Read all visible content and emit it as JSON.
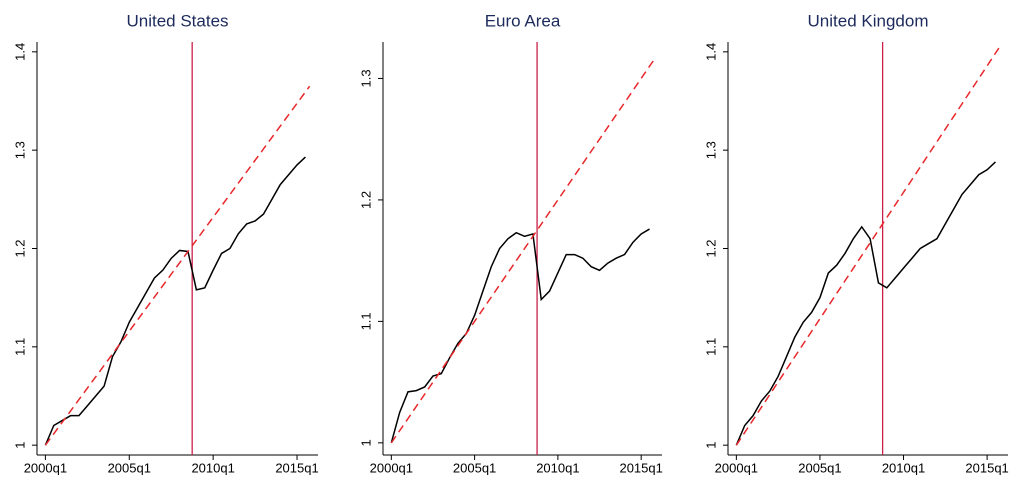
{
  "chart_data": [
    {
      "type": "line",
      "title": "United States",
      "x": [
        2000,
        2000.5,
        2001,
        2001.5,
        2002,
        2002.5,
        2003,
        2003.5,
        2004,
        2004.5,
        2005,
        2005.5,
        2006,
        2006.5,
        2007,
        2007.5,
        2008,
        2008.5,
        2009,
        2009.5,
        2010,
        2010.5,
        2011,
        2011.5,
        2012,
        2012.5,
        2013,
        2013.5,
        2014,
        2014.5,
        2015,
        2015.5
      ],
      "series": [
        {
          "color": "#000000",
          "values": [
            1.0,
            1.02,
            1.025,
            1.03,
            1.03,
            1.04,
            1.05,
            1.06,
            1.09,
            1.105,
            1.125,
            1.14,
            1.155,
            1.17,
            1.178,
            1.19,
            1.198,
            1.197,
            1.158,
            1.16,
            1.178,
            1.195,
            1.2,
            1.215,
            1.225,
            1.228,
            1.235,
            1.25,
            1.265,
            1.275,
            1.285,
            1.293
          ]
        },
        {
          "color": "#e8282b",
          "dash": true,
          "x": [
            2000,
            2015.75
          ],
          "values": [
            1.0,
            1.365
          ]
        }
      ],
      "vline": 2008.75,
      "vline_color": "#c8204a",
      "xlim": [
        1999.5,
        2016.25
      ],
      "xticks": [
        {
          "value": 2000,
          "label": "2000q1"
        },
        {
          "value": 2005,
          "label": "2005q1"
        },
        {
          "value": 2010,
          "label": "2010q1"
        },
        {
          "value": 2015,
          "label": "2015q1"
        }
      ],
      "ylim": [
        0.99,
        1.41
      ],
      "yticks": [
        1,
        1.1,
        1.2,
        1.3,
        1.4
      ]
    },
    {
      "type": "line",
      "title": "Euro Area",
      "x": [
        2000,
        2000.5,
        2001,
        2001.5,
        2002,
        2002.5,
        2003,
        2003.5,
        2004,
        2004.5,
        2005,
        2005.5,
        2006,
        2006.5,
        2007,
        2007.5,
        2008,
        2008.5,
        2009,
        2009.5,
        2010,
        2010.5,
        2011,
        2011.5,
        2012,
        2012.5,
        2013,
        2013.5,
        2014,
        2014.5,
        2015,
        2015.5
      ],
      "series": [
        {
          "color": "#000000",
          "values": [
            1.0,
            1.025,
            1.042,
            1.043,
            1.046,
            1.055,
            1.057,
            1.07,
            1.082,
            1.09,
            1.105,
            1.125,
            1.145,
            1.16,
            1.168,
            1.173,
            1.17,
            1.172,
            1.118,
            1.125,
            1.14,
            1.155,
            1.155,
            1.152,
            1.145,
            1.142,
            1.148,
            1.152,
            1.155,
            1.165,
            1.172,
            1.176
          ]
        },
        {
          "color": "#e8282b",
          "dash": true,
          "x": [
            2000,
            2015.75
          ],
          "values": [
            1.0,
            1.315
          ]
        }
      ],
      "vline": 2008.75,
      "vline_color": "#c8204a",
      "xlim": [
        1999.5,
        2016.25
      ],
      "xticks": [
        {
          "value": 2000,
          "label": "2000q1"
        },
        {
          "value": 2005,
          "label": "2005q1"
        },
        {
          "value": 2010,
          "label": "2010q1"
        },
        {
          "value": 2015,
          "label": "2015q1"
        }
      ],
      "ylim": [
        0.99,
        1.33
      ],
      "yticks": [
        1,
        1.1,
        1.2,
        1.3
      ]
    },
    {
      "type": "line",
      "title": "United Kingdom",
      "x": [
        2000,
        2000.5,
        2001,
        2001.5,
        2002,
        2002.5,
        2003,
        2003.5,
        2004,
        2004.5,
        2005,
        2005.5,
        2006,
        2006.5,
        2007,
        2007.5,
        2008,
        2008.5,
        2009,
        2009.5,
        2010,
        2010.5,
        2011,
        2011.5,
        2012,
        2012.5,
        2013,
        2013.5,
        2014,
        2014.5,
        2015,
        2015.5
      ],
      "series": [
        {
          "color": "#000000",
          "values": [
            1.0,
            1.02,
            1.03,
            1.045,
            1.055,
            1.07,
            1.09,
            1.11,
            1.125,
            1.135,
            1.15,
            1.175,
            1.183,
            1.195,
            1.21,
            1.222,
            1.21,
            1.165,
            1.16,
            1.17,
            1.18,
            1.19,
            1.2,
            1.205,
            1.21,
            1.225,
            1.24,
            1.255,
            1.265,
            1.275,
            1.28,
            1.288
          ]
        },
        {
          "color": "#e8282b",
          "dash": true,
          "x": [
            2000,
            2015.75
          ],
          "values": [
            1.0,
            1.405
          ]
        }
      ],
      "vline": 2008.75,
      "vline_color": "#c8204a",
      "xlim": [
        1999.5,
        2016.25
      ],
      "xticks": [
        {
          "value": 2000,
          "label": "2000q1"
        },
        {
          "value": 2005,
          "label": "2005q1"
        },
        {
          "value": 2010,
          "label": "2010q1"
        },
        {
          "value": 2015,
          "label": "2015q1"
        }
      ],
      "ylim": [
        0.99,
        1.41
      ],
      "yticks": [
        1,
        1.1,
        1.2,
        1.3,
        1.4
      ]
    }
  ]
}
